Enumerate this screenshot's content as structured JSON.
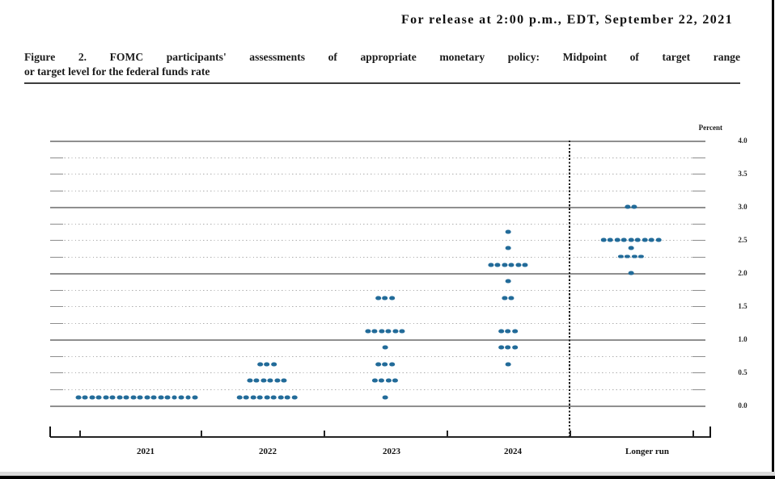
{
  "header": {
    "release_line": "For release at 2:00 p.m., EDT, September 22, 2021",
    "title_line1": "Figure 2.  FOMC participants' assessments of appropriate monetary policy:  Midpoint of target range",
    "title_line2": "or target level for the federal funds rate"
  },
  "chart_data": {
    "type": "scatter",
    "title": "FOMC participants' assessments of appropriate monetary policy: Midpoint of target range or target level for the federal funds rate",
    "ylabel": "Percent",
    "ylim": [
      0.0,
      4.0
    ],
    "grid": {
      "on": true,
      "solid_at": [
        0.0,
        1.0,
        2.0,
        3.0,
        4.0
      ],
      "dotted_step": 0.25
    },
    "y_ticks": [
      {
        "value": 4.0,
        "label": "4.0"
      },
      {
        "value": 3.5,
        "label": "3.5"
      },
      {
        "value": 3.0,
        "label": "3.0"
      },
      {
        "value": 2.5,
        "label": "2.5"
      },
      {
        "value": 2.0,
        "label": "2.0"
      },
      {
        "value": 1.5,
        "label": "1.5"
      },
      {
        "value": 1.0,
        "label": "1.0"
      },
      {
        "value": 0.5,
        "label": "0.5"
      },
      {
        "value": 0.0,
        "label": "0.0"
      }
    ],
    "categories": [
      "2021",
      "2022",
      "2023",
      "2024",
      "Longer run"
    ],
    "separator_after_category": "2024",
    "dot_color": "#226b99",
    "series": [
      {
        "name": "2021",
        "points": [
          {
            "rate": 0.125,
            "count": 18
          }
        ]
      },
      {
        "name": "2022",
        "points": [
          {
            "rate": 0.625,
            "count": 3
          },
          {
            "rate": 0.375,
            "count": 6
          },
          {
            "rate": 0.125,
            "count": 9
          }
        ]
      },
      {
        "name": "2023",
        "points": [
          {
            "rate": 1.625,
            "count": 3
          },
          {
            "rate": 1.125,
            "count": 6
          },
          {
            "rate": 0.875,
            "count": 1
          },
          {
            "rate": 0.625,
            "count": 3
          },
          {
            "rate": 0.375,
            "count": 4
          },
          {
            "rate": 0.125,
            "count": 1
          }
        ]
      },
      {
        "name": "2024",
        "points": [
          {
            "rate": 2.625,
            "count": 1
          },
          {
            "rate": 2.375,
            "count": 1
          },
          {
            "rate": 2.125,
            "count": 6
          },
          {
            "rate": 1.875,
            "count": 1
          },
          {
            "rate": 1.625,
            "count": 2
          },
          {
            "rate": 1.125,
            "count": 3
          },
          {
            "rate": 0.875,
            "count": 3
          },
          {
            "rate": 0.625,
            "count": 1
          }
        ]
      },
      {
        "name": "Longer run",
        "points": [
          {
            "rate": 3.0,
            "count": 2
          },
          {
            "rate": 2.5,
            "count": 9
          },
          {
            "rate": 2.375,
            "count": 1
          },
          {
            "rate": 2.25,
            "count": 4
          },
          {
            "rate": 2.0,
            "count": 1
          }
        ]
      }
    ]
  }
}
